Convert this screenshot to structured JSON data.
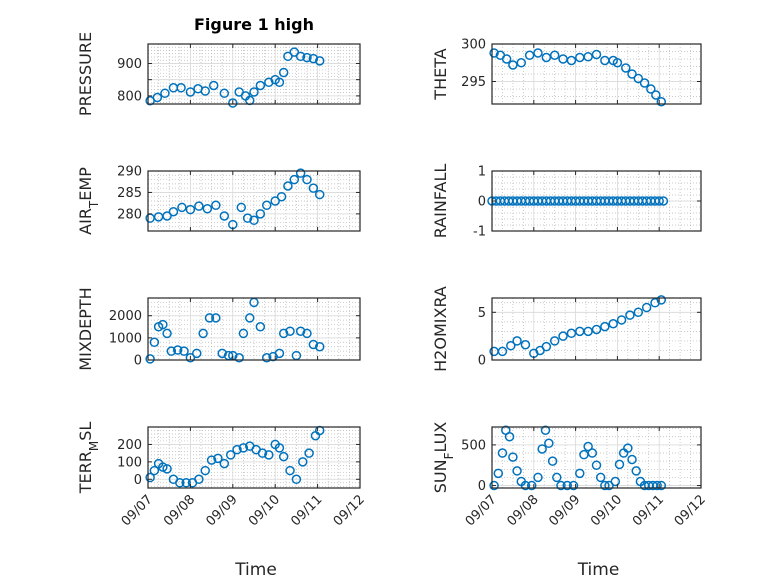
{
  "title": "Figure 1 high",
  "xlabel": "Time",
  "xtick_labels": [
    "09/07",
    "09/08",
    "09/09",
    "09/10",
    "09/11",
    "09/12"
  ],
  "colors": {
    "marker": "#0072BD",
    "axis": "#262626",
    "grid": "#b8b8b8"
  },
  "chart_data": [
    {
      "type": "scatter",
      "marker": "open-circle",
      "ylabel": "PRESSURE",
      "ylim": [
        775,
        960
      ],
      "yticks": [
        800,
        850,
        900
      ],
      "ytick_labels": [
        "800",
        "",
        "900"
      ],
      "series": [
        {
          "x": [
            0.05,
            0.22,
            0.4,
            0.6,
            0.78,
            1.0,
            1.18,
            1.35,
            1.55,
            1.8,
            2.0,
            2.15,
            2.3,
            2.4,
            2.5,
            2.65,
            2.85,
            3.0,
            3.1,
            3.2,
            3.3,
            3.45,
            3.6,
            3.75,
            3.9,
            4.05
          ],
          "y": [
            785,
            795,
            808,
            825,
            825,
            812,
            822,
            815,
            832,
            808,
            778,
            812,
            800,
            786,
            812,
            832,
            842,
            850,
            842,
            872,
            922,
            935,
            922,
            918,
            915,
            908
          ]
        }
      ]
    },
    {
      "type": "scatter",
      "marker": "open-circle",
      "ylabel": "THETA",
      "ylim": [
        292,
        300
      ],
      "yticks": [
        295,
        300
      ],
      "ytick_labels": [
        "295",
        "300"
      ],
      "series": [
        {
          "x": [
            0.05,
            0.2,
            0.35,
            0.5,
            0.7,
            0.9,
            1.1,
            1.3,
            1.5,
            1.7,
            1.9,
            2.1,
            2.3,
            2.5,
            2.7,
            2.9,
            3.0,
            3.2,
            3.35,
            3.5,
            3.65,
            3.8,
            3.92,
            4.05
          ],
          "y": [
            298.8,
            298.5,
            298.0,
            297.2,
            297.5,
            298.5,
            298.8,
            298.2,
            298.5,
            298.0,
            297.8,
            298.2,
            298.3,
            298.6,
            297.8,
            297.8,
            297.5,
            296.8,
            296.0,
            295.4,
            294.8,
            294.0,
            293.2,
            292.3
          ]
        }
      ]
    },
    {
      "type": "scatter",
      "marker": "open-circle",
      "ylabel": "AIR_TEMP",
      "ylim": [
        276,
        290
      ],
      "yticks": [
        280,
        285,
        290
      ],
      "ytick_labels": [
        "280",
        "285",
        "290"
      ],
      "series": [
        {
          "x": [
            0.05,
            0.25,
            0.45,
            0.6,
            0.8,
            1.0,
            1.2,
            1.4,
            1.6,
            1.8,
            2.0,
            2.2,
            2.35,
            2.5,
            2.65,
            2.8,
            3.0,
            3.15,
            3.3,
            3.45,
            3.6,
            3.75,
            3.9,
            4.05
          ],
          "y": [
            279.0,
            279.3,
            279.5,
            280.5,
            281.5,
            281.0,
            281.8,
            281.2,
            282.0,
            279.5,
            277.5,
            281.5,
            279.0,
            278.5,
            280.0,
            282.0,
            283.0,
            284.0,
            286.5,
            288.0,
            289.5,
            288.0,
            286.0,
            284.5
          ]
        }
      ]
    },
    {
      "type": "scatter",
      "marker": "open-circle",
      "ylabel": "RAINFALL",
      "ylim": [
        -1,
        1
      ],
      "yticks": [
        -1,
        0,
        1
      ],
      "ytick_labels": [
        "-1",
        "0",
        "1"
      ],
      "series": [
        {
          "x": [
            0.0,
            0.1,
            0.2,
            0.3,
            0.4,
            0.5,
            0.6,
            0.7,
            0.8,
            0.9,
            1.0,
            1.1,
            1.2,
            1.3,
            1.4,
            1.5,
            1.6,
            1.7,
            1.8,
            1.9,
            2.0,
            2.1,
            2.2,
            2.3,
            2.4,
            2.5,
            2.6,
            2.7,
            2.8,
            2.9,
            3.0,
            3.1,
            3.2,
            3.3,
            3.4,
            3.5,
            3.6,
            3.7,
            3.8,
            3.9,
            4.0,
            4.1
          ],
          "y": [
            0,
            0,
            0,
            0,
            0,
            0,
            0,
            0,
            0,
            0,
            0,
            0,
            0,
            0,
            0,
            0,
            0,
            0,
            0,
            0,
            0,
            0,
            0,
            0,
            0,
            0,
            0,
            0,
            0,
            0,
            0,
            0,
            0,
            0,
            0,
            0,
            0,
            0,
            0,
            0,
            0,
            0
          ]
        }
      ]
    },
    {
      "type": "scatter",
      "marker": "open-circle",
      "ylabel": "MIXDEPTH",
      "ylim": [
        0,
        2800
      ],
      "yticks": [
        0,
        1000,
        2000
      ],
      "ytick_labels": [
        "0",
        "1000",
        "2000"
      ],
      "series": [
        {
          "x": [
            0.05,
            0.15,
            0.25,
            0.35,
            0.45,
            0.55,
            0.7,
            0.85,
            1.0,
            1.15,
            1.3,
            1.45,
            1.6,
            1.75,
            1.9,
            2.0,
            2.15,
            2.25,
            2.4,
            2.5,
            2.65,
            2.8,
            2.95,
            3.1,
            3.2,
            3.35,
            3.5,
            3.6,
            3.75,
            3.9,
            4.05
          ],
          "y": [
            50,
            800,
            1500,
            1600,
            1200,
            400,
            450,
            400,
            100,
            300,
            1200,
            1900,
            1900,
            300,
            200,
            200,
            100,
            1200,
            1900,
            2600,
            1500,
            100,
            150,
            300,
            1200,
            1300,
            200,
            1300,
            1200,
            700,
            600
          ]
        }
      ]
    },
    {
      "type": "scatter",
      "marker": "open-circle",
      "ylabel": "H2OMIXRA",
      "ylim": [
        0,
        6.5
      ],
      "yticks": [
        0,
        5
      ],
      "ytick_labels": [
        "0",
        "5"
      ],
      "series": [
        {
          "x": [
            0.05,
            0.25,
            0.45,
            0.6,
            0.8,
            1.0,
            1.15,
            1.3,
            1.5,
            1.7,
            1.9,
            2.1,
            2.3,
            2.5,
            2.7,
            2.9,
            3.1,
            3.3,
            3.5,
            3.7,
            3.9,
            4.05
          ],
          "y": [
            0.9,
            0.9,
            1.5,
            2.0,
            1.6,
            0.7,
            1.0,
            1.4,
            2.0,
            2.5,
            2.8,
            3.0,
            3.0,
            3.2,
            3.5,
            3.8,
            4.2,
            4.7,
            5.0,
            5.5,
            6.0,
            6.3
          ]
        }
      ]
    },
    {
      "type": "scatter",
      "marker": "open-circle",
      "ylabel": "TERR_MSL",
      "ylim": [
        -50,
        300
      ],
      "yticks": [
        0,
        100,
        200
      ],
      "ytick_labels": [
        "0",
        "100",
        "200"
      ],
      "series": [
        {
          "x": [
            0.05,
            0.15,
            0.25,
            0.35,
            0.45,
            0.6,
            0.75,
            0.9,
            1.05,
            1.2,
            1.35,
            1.5,
            1.65,
            1.8,
            1.95,
            2.1,
            2.25,
            2.4,
            2.55,
            2.7,
            2.85,
            3.0,
            3.1,
            3.2,
            3.35,
            3.5,
            3.65,
            3.8,
            3.95,
            4.05
          ],
          "y": [
            10,
            50,
            90,
            70,
            60,
            0,
            -20,
            -20,
            -20,
            0,
            50,
            110,
            120,
            90,
            140,
            170,
            180,
            190,
            170,
            150,
            140,
            200,
            180,
            130,
            50,
            0,
            100,
            150,
            250,
            280
          ]
        }
      ]
    },
    {
      "type": "scatter",
      "marker": "open-circle",
      "ylabel": "SUN_FLUX",
      "ylim": [
        -30,
        720
      ],
      "yticks": [
        0,
        500
      ],
      "ytick_labels": [
        "0",
        "500"
      ],
      "series": [
        {
          "x": [
            0.05,
            0.15,
            0.25,
            0.33,
            0.42,
            0.5,
            0.6,
            0.7,
            0.8,
            0.95,
            1.1,
            1.2,
            1.28,
            1.36,
            1.45,
            1.55,
            1.65,
            1.8,
            1.95,
            2.1,
            2.2,
            2.3,
            2.4,
            2.5,
            2.6,
            2.7,
            2.8,
            2.95,
            3.05,
            3.15,
            3.25,
            3.35,
            3.45,
            3.55,
            3.65,
            3.75,
            3.85,
            3.95,
            4.05
          ],
          "y": [
            0,
            150,
            400,
            680,
            600,
            350,
            180,
            50,
            0,
            0,
            100,
            450,
            680,
            520,
            300,
            100,
            0,
            0,
            0,
            150,
            380,
            480,
            400,
            250,
            100,
            0,
            0,
            50,
            260,
            400,
            460,
            320,
            180,
            50,
            0,
            0,
            0,
            0,
            0
          ]
        }
      ]
    }
  ]
}
